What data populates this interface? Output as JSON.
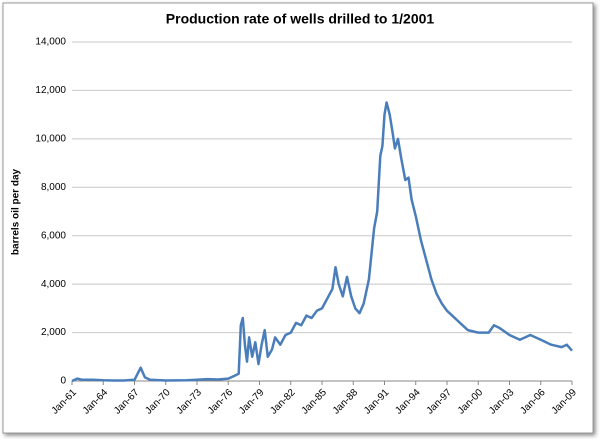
{
  "chart_data": {
    "type": "line",
    "title": "Production  rate of wells drilled to 1/2001",
    "y_label": "barrels oil per day",
    "grid": true,
    "xlim": [
      1961,
      2009
    ],
    "xticks": [
      {
        "value": 1961,
        "label": "Jan-61"
      },
      {
        "value": 1964,
        "label": "Jan-64"
      },
      {
        "value": 1967,
        "label": "Jan-67"
      },
      {
        "value": 1970,
        "label": "Jan-70"
      },
      {
        "value": 1973,
        "label": "Jan-73"
      },
      {
        "value": 1976,
        "label": "Jan-76"
      },
      {
        "value": 1979,
        "label": "Jan-79"
      },
      {
        "value": 1982,
        "label": "Jan-82"
      },
      {
        "value": 1985,
        "label": "Jan-85"
      },
      {
        "value": 1988,
        "label": "Jan-88"
      },
      {
        "value": 1991,
        "label": "Jan-91"
      },
      {
        "value": 1994,
        "label": "Jan-94"
      },
      {
        "value": 1997,
        "label": "Jan-97"
      },
      {
        "value": 2000,
        "label": "Jan-00"
      },
      {
        "value": 2003,
        "label": "Jan-03"
      },
      {
        "value": 2006,
        "label": "Jan-06"
      },
      {
        "value": 2009,
        "label": "Jan-09"
      }
    ],
    "ylim": [
      0,
      14000
    ],
    "yticks": [
      0,
      {
        "value": 2000,
        "label": "2,000"
      },
      {
        "value": 4000,
        "label": "4,000"
      },
      {
        "value": 6000,
        "label": "6,000"
      },
      {
        "value": 8000,
        "label": "8,000"
      },
      {
        "value": 10000,
        "label": "10,000"
      },
      {
        "value": 12000,
        "label": "12,000"
      },
      {
        "value": 14000,
        "label": "14,000"
      }
    ],
    "series": [
      {
        "color": "#4a7ebb",
        "x": [
          1961,
          1961.5,
          1962,
          1963,
          1964,
          1965,
          1966,
          1967,
          1967.6,
          1968,
          1968.5,
          1970,
          1972,
          1973,
          1974,
          1975,
          1976,
          1976.5,
          1977,
          1977.2,
          1977.4,
          1977.6,
          1977.8,
          1978,
          1978.3,
          1978.6,
          1978.9,
          1979.2,
          1979.5,
          1979.8,
          1980.2,
          1980.5,
          1981,
          1981.5,
          1982,
          1982.5,
          1983,
          1983.5,
          1984,
          1984.5,
          1985,
          1985.5,
          1986,
          1986.3,
          1986.6,
          1987,
          1987.4,
          1987.8,
          1988.2,
          1988.6,
          1989,
          1989.5,
          1990,
          1990.3,
          1990.6,
          1990.8,
          1991,
          1991.2,
          1991.5,
          1991.8,
          1992,
          1992.3,
          1992.6,
          1993,
          1993.3,
          1993.6,
          1994,
          1994.5,
          1995,
          1995.5,
          1996,
          1996.5,
          1997,
          1997.5,
          1998,
          1998.5,
          1999,
          2000,
          2001,
          2001.5,
          2002,
          2003,
          2004,
          2005,
          2006,
          2007,
          2008,
          2008.5,
          2009
        ],
        "values": [
          0,
          100,
          50,
          50,
          30,
          20,
          20,
          50,
          550,
          150,
          50,
          20,
          30,
          50,
          80,
          60,
          100,
          200,
          300,
          2300,
          2600,
          1500,
          800,
          1800,
          1000,
          1600,
          700,
          1500,
          2100,
          1000,
          1300,
          1800,
          1500,
          1900,
          2000,
          2400,
          2300,
          2700,
          2600,
          2900,
          3000,
          3400,
          3800,
          4700,
          4000,
          3500,
          4300,
          3500,
          3000,
          2800,
          3200,
          4200,
          6300,
          7000,
          9300,
          9700,
          11000,
          11500,
          11000,
          10200,
          9600,
          10000,
          9200,
          8300,
          8400,
          7500,
          6800,
          5800,
          5000,
          4200,
          3600,
          3200,
          2900,
          2700,
          2500,
          2300,
          2100,
          2000,
          2000,
          2300,
          2200,
          1900,
          1700,
          1900,
          1700,
          1500,
          1400,
          1500,
          1250
        ]
      }
    ]
  }
}
